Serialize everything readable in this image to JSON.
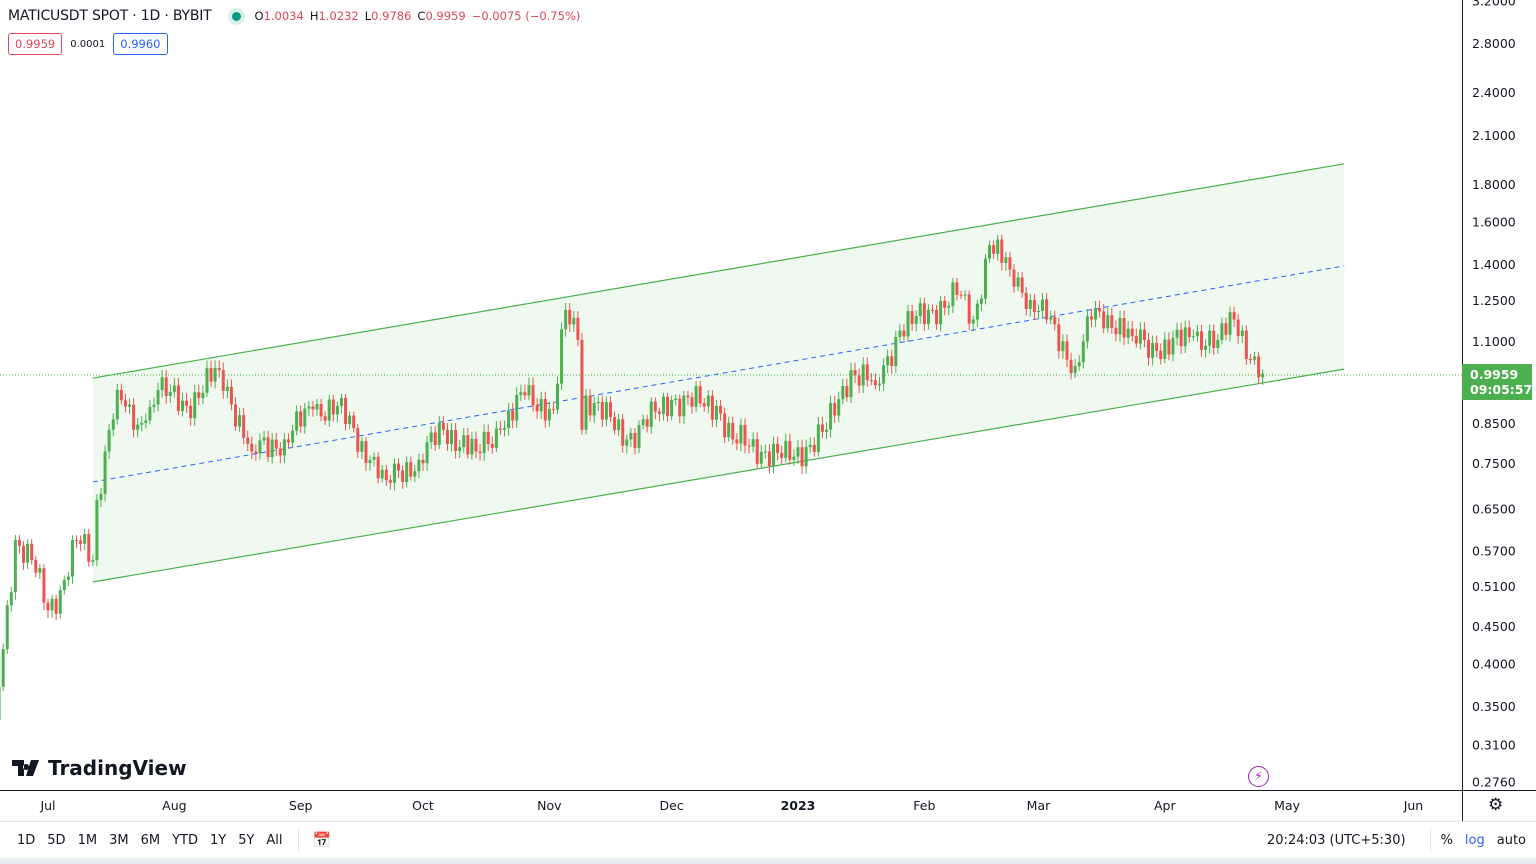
{
  "header": {
    "symbol": "MATICUSDT SPOT · 1D · BYBIT",
    "open_label": "O",
    "open": "1.0034",
    "high_label": "H",
    "high": "1.0232",
    "low_label": "L",
    "low": "0.9786",
    "close_label": "C",
    "close": "0.9959",
    "change": "−0.0075 (−0.75%)",
    "sell_price": "0.9959",
    "spread": "0.0001",
    "buy_price": "0.9960"
  },
  "last_price": {
    "price": "0.9959",
    "countdown": "09:05:57"
  },
  "brand": "TradingView",
  "toolbar": {
    "timeframes": [
      "1D",
      "5D",
      "1M",
      "3M",
      "6M",
      "YTD",
      "1Y",
      "5Y",
      "All"
    ],
    "clock": "20:24:03 (UTC+5:30)",
    "percent": "%",
    "log": "log",
    "auto": "auto"
  },
  "colors": {
    "up": "#4caf50",
    "down": "#ef5350",
    "channel": "#4caf50",
    "channel_fill": "#eef8ee",
    "midline": "#2962ff"
  },
  "chart_data": {
    "type": "candlestick",
    "title": "MATICUSDT SPOT · 1D · BYBIT",
    "y_scale": "log",
    "ylim": [
      0.265,
      3.25
    ],
    "y_ticks": [
      "3.2000",
      "2.8000",
      "2.4000",
      "2.1000",
      "1.8000",
      "1.6000",
      "1.4000",
      "1.2500",
      "1.1000",
      "0.8500",
      "0.7500",
      "0.6500",
      "0.5700",
      "0.5100",
      "0.4500",
      "0.4000",
      "0.3500",
      "0.3100",
      "0.2760"
    ],
    "x_ticks": [
      {
        "label": "Jul",
        "date": "2022-07-01"
      },
      {
        "label": "Aug",
        "date": "2022-08-01"
      },
      {
        "label": "Sep",
        "date": "2022-09-01"
      },
      {
        "label": "Oct",
        "date": "2022-10-01"
      },
      {
        "label": "Nov",
        "date": "2022-11-01"
      },
      {
        "label": "Dec",
        "date": "2022-12-01"
      },
      {
        "label": "2023",
        "date": "2023-01-01"
      },
      {
        "label": "Feb",
        "date": "2023-02-01"
      },
      {
        "label": "Mar",
        "date": "2023-03-01"
      },
      {
        "label": "Apr",
        "date": "2023-04-01"
      },
      {
        "label": "May",
        "date": "2023-05-01"
      },
      {
        "label": "Jun",
        "date": "2023-06-01"
      }
    ],
    "close_keypoints": [
      [
        "2022-06-18",
        0.336
      ],
      [
        "2022-06-23",
        0.591
      ],
      [
        "2022-06-27",
        0.555
      ],
      [
        "2022-07-01",
        0.474
      ],
      [
        "2022-07-04",
        0.505
      ],
      [
        "2022-07-08",
        0.59
      ],
      [
        "2022-07-12",
        0.555
      ],
      [
        "2022-07-13",
        0.67
      ],
      [
        "2022-07-16",
        0.835
      ],
      [
        "2022-07-18",
        0.946
      ],
      [
        "2022-07-22",
        0.835
      ],
      [
        "2022-07-25",
        0.86
      ],
      [
        "2022-07-28",
        0.946
      ],
      [
        "2022-08-04",
        0.9
      ],
      [
        "2022-08-12",
        1.007
      ],
      [
        "2022-08-20",
        0.78
      ],
      [
        "2022-08-28",
        0.81
      ],
      [
        "2022-09-04",
        0.89
      ],
      [
        "2022-09-10",
        0.9
      ],
      [
        "2022-09-18",
        0.76
      ],
      [
        "2022-09-22",
        0.713
      ],
      [
        "2022-09-30",
        0.76
      ],
      [
        "2022-10-06",
        0.835
      ],
      [
        "2022-10-14",
        0.78
      ],
      [
        "2022-10-20",
        0.835
      ],
      [
        "2022-10-26",
        0.93
      ],
      [
        "2022-11-02",
        0.89
      ],
      [
        "2022-11-05",
        1.216
      ],
      [
        "2022-11-08",
        1.107
      ],
      [
        "2022-11-09",
        0.835
      ],
      [
        "2022-11-10",
        0.93
      ],
      [
        "2022-11-20",
        0.81
      ],
      [
        "2022-12-01",
        0.917
      ],
      [
        "2022-12-12",
        0.9
      ],
      [
        "2022-12-16",
        0.81
      ],
      [
        "2022-12-30",
        0.76
      ],
      [
        "2023-01-08",
        0.835
      ],
      [
        "2023-01-14",
        1.007
      ],
      [
        "2023-01-20",
        0.96
      ],
      [
        "2023-01-26",
        1.14
      ],
      [
        "2023-02-03",
        1.216
      ],
      [
        "2023-02-09",
        1.275
      ],
      [
        "2023-02-13",
        1.18
      ],
      [
        "2023-02-17",
        1.49
      ],
      [
        "2023-02-22",
        1.38
      ],
      [
        "2023-02-27",
        1.255
      ],
      [
        "2023-03-03",
        1.18
      ],
      [
        "2023-03-10",
        1.02
      ],
      [
        "2023-03-14",
        1.18
      ],
      [
        "2023-03-18",
        1.196
      ],
      [
        "2023-03-24",
        1.12
      ],
      [
        "2023-03-30",
        1.07
      ],
      [
        "2023-04-08",
        1.12
      ],
      [
        "2023-04-14",
        1.107
      ],
      [
        "2023-04-18",
        1.18
      ],
      [
        "2023-04-20",
        1.14
      ],
      [
        "2023-04-22",
        1.04
      ],
      [
        "2023-04-25",
        0.9959
      ]
    ],
    "channel": {
      "start": "2022-07-12",
      "end": "2023-05-15",
      "upper": [
        0.982,
        1.923
      ],
      "middle": [
        0.709,
        1.396
      ],
      "lower": [
        0.518,
        1.01
      ]
    },
    "last_price_line": 0.9959
  }
}
